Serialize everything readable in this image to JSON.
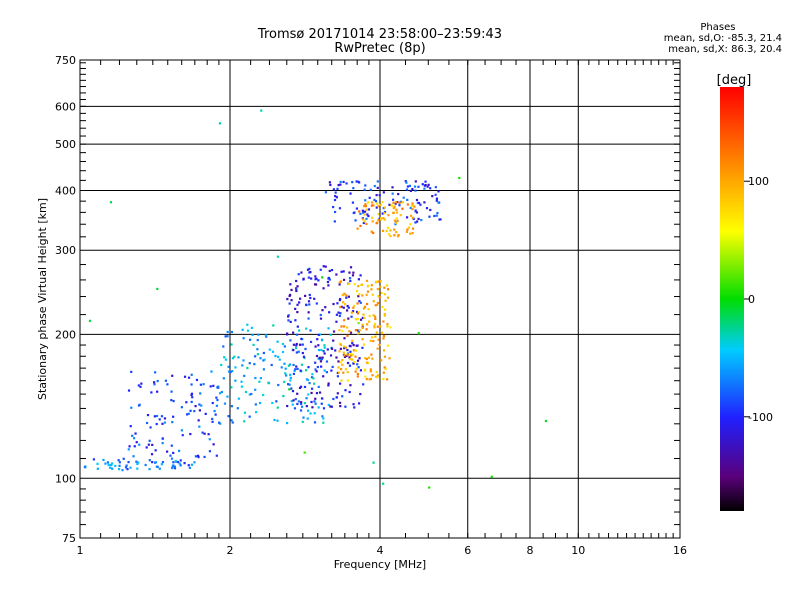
{
  "chart_data": {
    "type": "scatter",
    "title": "Tromsø 20171014 23:58:00–23:59:43",
    "subtitle": "RwPretec (8p)",
    "xlabel": "Frequency [MHz]",
    "ylabel": "Stationary phase Virtual Height [km]",
    "x_scale": "log",
    "y_scale": "log",
    "xlim": [
      1,
      16
    ],
    "ylim": [
      75,
      750
    ],
    "x_ticks": [
      1,
      2,
      4,
      6,
      8,
      10,
      16
    ],
    "y_ticks": [
      75,
      100,
      200,
      300,
      400,
      500,
      600,
      750
    ],
    "grid": true,
    "colorbar": {
      "label": "[deg]",
      "range": [
        -180,
        180
      ],
      "ticks": [
        100,
        0,
        -100
      ]
    },
    "phases": {
      "header": "Phases",
      "o_line": "mean, sd,O: -85.3, 21.4",
      "x_line": "mean, sd,X: 86.3, 20.4"
    },
    "clusters": [
      {
        "name": "low-frequency E/F trace",
        "x": [
          1.02,
          1.7
        ],
        "y": [
          104,
          110
        ],
        "phase": -70,
        "count": 60
      },
      {
        "name": "lower F spread",
        "x": [
          1.25,
          1.9
        ],
        "y": [
          110,
          170
        ],
        "phase": -90,
        "count": 110
      },
      {
        "name": "F1 rising trace",
        "x": [
          1.9,
          3.2
        ],
        "y": [
          130,
          210
        ],
        "phase": -55,
        "count": 170
      },
      {
        "name": "O-mode F2 trace",
        "x": [
          2.6,
          3.7
        ],
        "y": [
          140,
          280
        ],
        "phase": -110,
        "count": 230
      },
      {
        "name": "X-mode F2 trace",
        "x": [
          3.3,
          4.2
        ],
        "y": [
          160,
          260
        ],
        "phase": 95,
        "count": 170
      },
      {
        "name": "upper O-mode spread",
        "x": [
          3.1,
          5.3
        ],
        "y": [
          340,
          420
        ],
        "phase": -95,
        "count": 120
      },
      {
        "name": "upper X-mode spread",
        "x": [
          3.6,
          4.7
        ],
        "y": [
          320,
          380
        ],
        "phase": 100,
        "count": 80
      },
      {
        "name": "sparse outliers",
        "x": [
          1.0,
          9.0
        ],
        "y": [
          95,
          640
        ],
        "phase": 0,
        "count": 18
      }
    ]
  }
}
